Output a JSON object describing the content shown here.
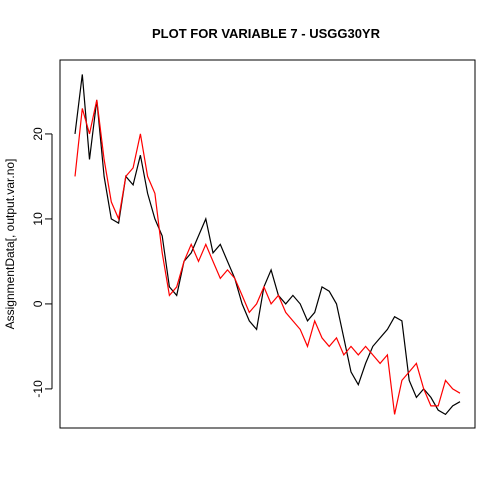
{
  "chart_data": {
    "type": "line",
    "title": "PLOT FOR VARIABLE 7 - USGG30YR",
    "ylabel": "AssignmentData[, output.var.no]",
    "ylim": [
      -14.6,
      28.7
    ],
    "yticks": [
      -10,
      0,
      10,
      20
    ],
    "series": [
      {
        "color": "#000000",
        "values": [
          20,
          27,
          17,
          24,
          15,
          10,
          9.5,
          15,
          14,
          17.5,
          13,
          10,
          8,
          2,
          1,
          5,
          6,
          8,
          10,
          6,
          7,
          5,
          3,
          0,
          -2,
          -3,
          2,
          4,
          1,
          0,
          1,
          0,
          -2,
          -1,
          2,
          1.5,
          0,
          -4,
          -8,
          -9.5,
          -7,
          -5,
          -4,
          -3,
          -1.5,
          -2,
          -9,
          -11,
          -10,
          -11,
          -12.5,
          -13,
          -12,
          -11.5
        ]
      },
      {
        "color": "#ff0000",
        "values": [
          15,
          23,
          20,
          24,
          17,
          12,
          10,
          15,
          16,
          20,
          15,
          13,
          6,
          1,
          2,
          5,
          7,
          5,
          7,
          5,
          3,
          4,
          3,
          1,
          -1,
          0,
          2,
          0,
          1,
          -1,
          -2,
          -3,
          -5,
          -2,
          -4,
          -5,
          -4,
          -6,
          -5,
          -6,
          -5,
          -6,
          -7,
          -6,
          -13,
          -9,
          -8,
          -7,
          -10,
          -12,
          -12,
          -9,
          -10,
          -10.5
        ]
      }
    ]
  }
}
